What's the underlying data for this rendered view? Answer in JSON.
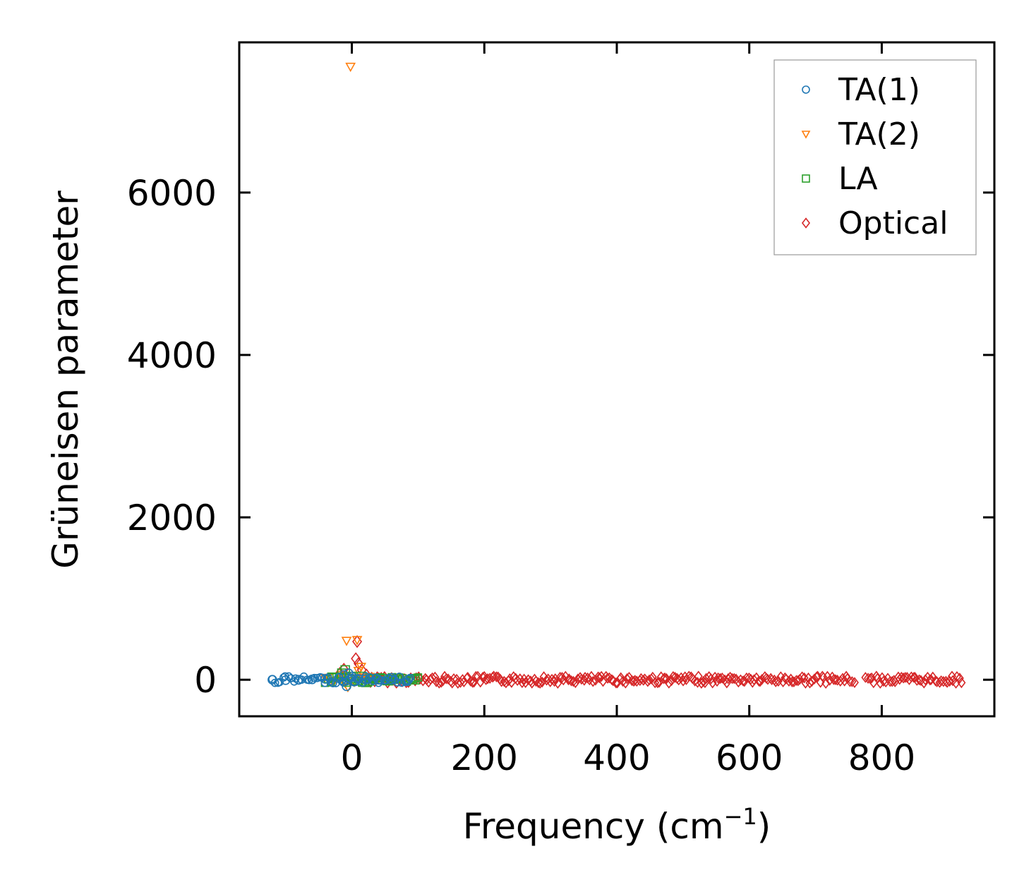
{
  "chart_data": {
    "type": "scatter",
    "title": "",
    "xlabel": "Frequency (cm",
    "xlabel_superscript": "−1",
    "xlabel_suffix": ")",
    "ylabel": "Grüneisen parameter",
    "xlim": [
      -170,
      970
    ],
    "ylim": [
      -450,
      7850
    ],
    "xticks": [
      0,
      200,
      400,
      600,
      800
    ],
    "yticks": [
      0,
      2000,
      4000,
      6000
    ],
    "xtick_labels": [
      "0",
      "200",
      "400",
      "600",
      "800"
    ],
    "ytick_labels": [
      "0",
      "2000",
      "4000",
      "6000"
    ],
    "grid": false,
    "legend_position": "top-right",
    "series": [
      {
        "name": "TA(1)",
        "marker": "circle",
        "color": "#1f77b4",
        "range": [
          -120,
          90
        ],
        "points": [
          [
            -120,
            0
          ],
          [
            -100,
            -5
          ],
          [
            -80,
            0
          ],
          [
            -60,
            5
          ],
          [
            -40,
            10
          ],
          [
            -20,
            20
          ],
          [
            -12,
            60
          ],
          [
            -8,
            -80
          ],
          [
            -5,
            80
          ],
          [
            0,
            40
          ],
          [
            5,
            -20
          ],
          [
            10,
            10
          ],
          [
            20,
            5
          ],
          [
            40,
            0
          ],
          [
            60,
            0
          ],
          [
            85,
            0
          ]
        ]
      },
      {
        "name": "TA(2)",
        "marker": "triangle-down",
        "color": "#ff7f0e",
        "range": [
          -40,
          30
        ],
        "points": [
          [
            -2,
            7550
          ],
          [
            -8,
            480
          ],
          [
            8,
            490
          ],
          [
            14,
            160
          ],
          [
            10,
            110
          ],
          [
            -15,
            60
          ],
          [
            -10,
            -40
          ],
          [
            -6,
            -90
          ],
          [
            0,
            20
          ],
          [
            20,
            30
          ],
          [
            25,
            10
          ]
        ]
      },
      {
        "name": "LA",
        "marker": "square",
        "color": "#2ca02c",
        "range": [
          -40,
          100
        ],
        "points": [
          [
            -30,
            30
          ],
          [
            -15,
            80
          ],
          [
            -10,
            120
          ],
          [
            0,
            40
          ],
          [
            15,
            40
          ],
          [
            30,
            10
          ],
          [
            60,
            5
          ],
          [
            95,
            0
          ]
        ]
      },
      {
        "name": "Optical",
        "marker": "diamond",
        "color": "#d62728",
        "range": [
          20,
          920
        ],
        "gap": [
          760,
          775
        ],
        "points": [
          [
            8,
            470
          ],
          [
            6,
            260
          ],
          [
            -12,
            130
          ],
          [
            -18,
            80
          ],
          [
            10,
            200
          ],
          [
            15,
            120
          ],
          [
            22,
            60
          ],
          [
            30,
            20
          ]
        ]
      }
    ]
  }
}
